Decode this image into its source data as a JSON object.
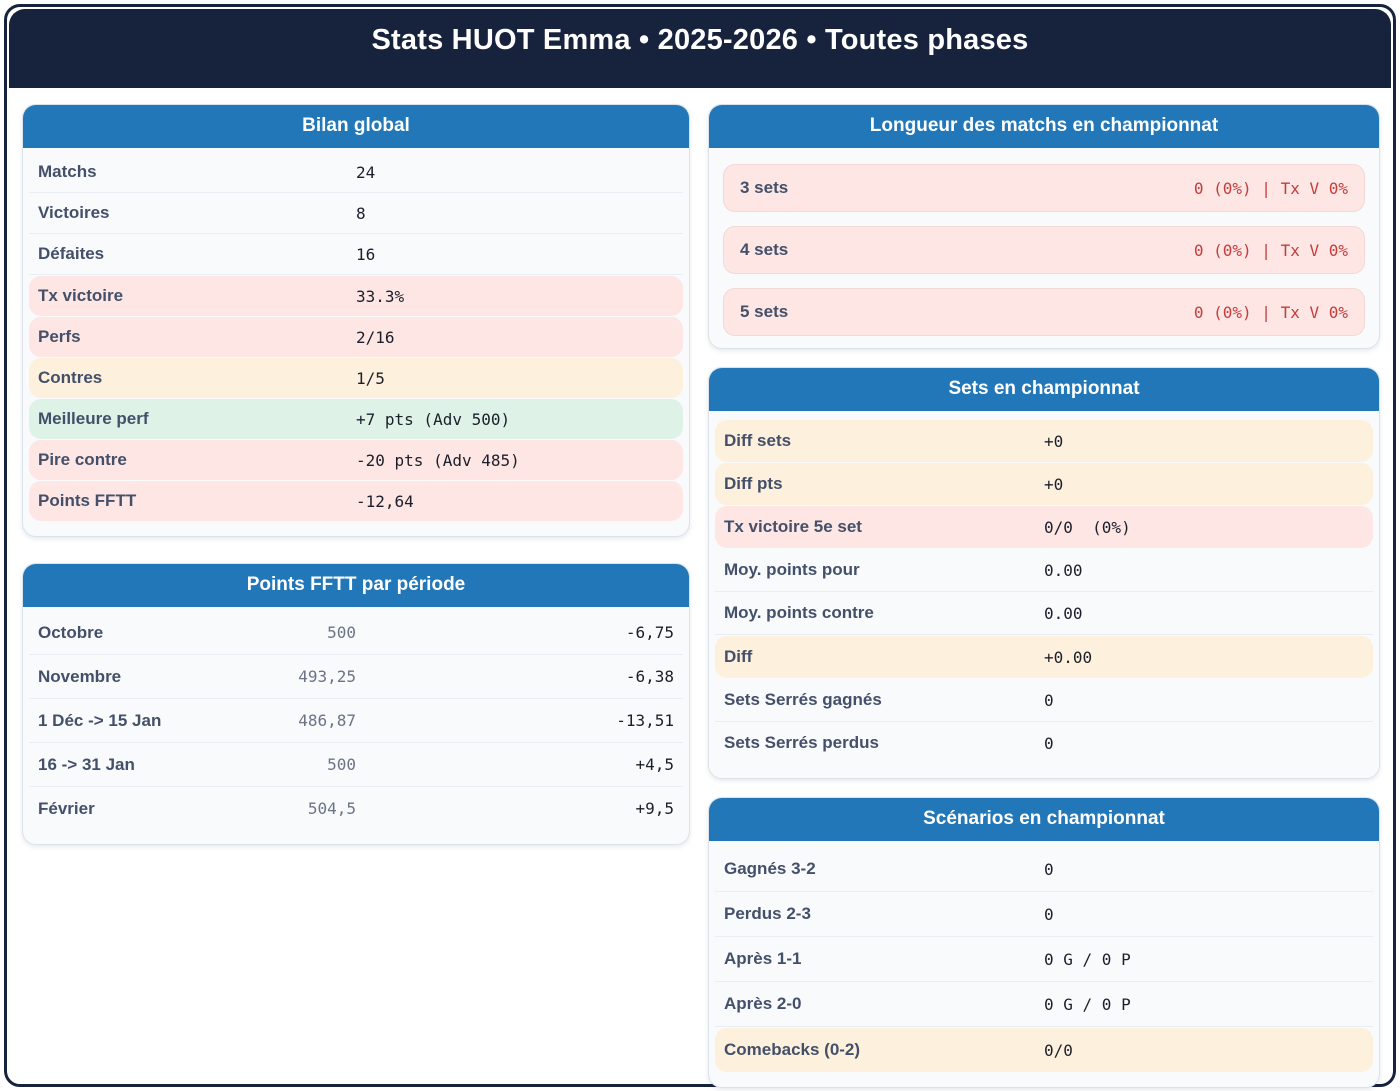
{
  "title": "Stats HUOT Emma • 2025-2026 • Toutes phases",
  "colors": {
    "banner_bg": "#17233d",
    "card_header_bg": "#2277b8",
    "highlight_pink": "#fde6e4",
    "highlight_yellow": "#fdf0dc",
    "highlight_green": "#def2e7",
    "alert_red": "#c43d3d"
  },
  "cards": {
    "bilan": {
      "title": "Bilan global",
      "rows": [
        {
          "label": "Matchs",
          "value": "24",
          "highlight": "none"
        },
        {
          "label": "Victoires",
          "value": "8",
          "highlight": "none"
        },
        {
          "label": "Défaites",
          "value": "16",
          "highlight": "none"
        },
        {
          "label": "Tx victoire",
          "value": "33.3%",
          "highlight": "pink"
        },
        {
          "label": "Perfs",
          "value": "2/16",
          "highlight": "pink"
        },
        {
          "label": "Contres",
          "value": "1/5",
          "highlight": "yellow"
        },
        {
          "label": "Meilleure perf",
          "value": "+7 pts (Adv 500)",
          "highlight": "green"
        },
        {
          "label": "Pire contre",
          "value": "-20 pts (Adv 485)",
          "highlight": "pink"
        },
        {
          "label": "Points FFTT",
          "value": "-12,64",
          "highlight": "pink"
        }
      ]
    },
    "periodes": {
      "title": "Points FFTT par période",
      "rows": [
        {
          "label": "Octobre",
          "points": "500",
          "delta": "-6,75"
        },
        {
          "label": "Novembre",
          "points": "493,25",
          "delta": "-6,38"
        },
        {
          "label": "1 Déc -> 15 Jan",
          "points": "486,87",
          "delta": "-13,51"
        },
        {
          "label": "16 -> 31 Jan",
          "points": "500",
          "delta": "+4,5"
        },
        {
          "label": "Février",
          "points": "504,5",
          "delta": "+9,5"
        }
      ]
    },
    "longueur": {
      "title": "Longueur des matchs en championnat",
      "rows": [
        {
          "label": "3 sets",
          "value": "0 (0%) | Tx V 0%"
        },
        {
          "label": "4 sets",
          "value": "0 (0%) | Tx V 0%"
        },
        {
          "label": "5 sets",
          "value": "0 (0%) | Tx V 0%"
        }
      ]
    },
    "sets": {
      "title": "Sets en championnat",
      "rows": [
        {
          "label": "Diff sets",
          "value": "+0",
          "highlight": "yellow"
        },
        {
          "label": "Diff pts",
          "value": "+0",
          "highlight": "yellow"
        },
        {
          "label": "Tx victoire 5e set",
          "value": "0/0  (0%)",
          "highlight": "pink"
        },
        {
          "label": "Moy. points pour",
          "value": "0.00",
          "highlight": "none"
        },
        {
          "label": "Moy. points contre",
          "value": "0.00",
          "highlight": "none"
        },
        {
          "label": "Diff",
          "value": "+0.00",
          "highlight": "yellow"
        },
        {
          "label": "Sets Serrés gagnés",
          "value": "0",
          "highlight": "none"
        },
        {
          "label": "Sets Serrés perdus",
          "value": "0",
          "highlight": "none"
        }
      ]
    },
    "scenarios": {
      "title": "Scénarios en championnat",
      "rows": [
        {
          "label": "Gagnés 3-2",
          "value": "0",
          "highlight": "none"
        },
        {
          "label": "Perdus 2-3",
          "value": "0",
          "highlight": "none"
        },
        {
          "label": "Après 1-1",
          "value": "0 G / 0 P",
          "highlight": "none"
        },
        {
          "label": "Après 2-0",
          "value": "0 G / 0 P",
          "highlight": "none"
        },
        {
          "label": "Comebacks (0-2)",
          "value": "0/0",
          "highlight": "yellow"
        }
      ]
    }
  }
}
